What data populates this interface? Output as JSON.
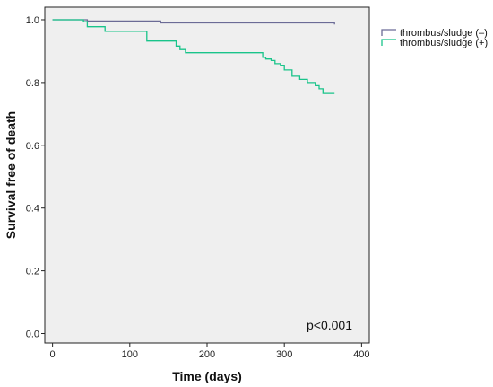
{
  "chart_data": {
    "type": "line",
    "step": true,
    "xlabel": "Time (days)",
    "ylabel": "Survival free of death",
    "xlim": [
      -10,
      410
    ],
    "ylim": [
      -0.03,
      1.04
    ],
    "xticks": [
      "0",
      "100",
      "200",
      "300",
      "400"
    ],
    "yticks": [
      "0.0",
      "0.2",
      "0.4",
      "0.6",
      "0.8",
      "1.0"
    ],
    "grid": false,
    "legend_position": "top-right-outside",
    "annotation": "p<0.001",
    "series": [
      {
        "name": "thrombus/sludge (–)",
        "color": "#6b6b96",
        "x": [
          0,
          45,
          140,
          362,
          365
        ],
        "y": [
          1.0,
          0.996,
          0.99,
          0.99,
          0.985
        ]
      },
      {
        "name": "thrombus/sludge (+)",
        "color": "#19c48a",
        "x": [
          0,
          40,
          45,
          68,
          122,
          160,
          165,
          172,
          272,
          276,
          283,
          288,
          295,
          300,
          310,
          320,
          330,
          340,
          345,
          350,
          365
        ],
        "y": [
          1.0,
          0.994,
          0.978,
          0.963,
          0.932,
          0.916,
          0.905,
          0.895,
          0.88,
          0.875,
          0.87,
          0.86,
          0.855,
          0.84,
          0.82,
          0.81,
          0.8,
          0.79,
          0.78,
          0.765,
          0.765
        ]
      }
    ]
  }
}
